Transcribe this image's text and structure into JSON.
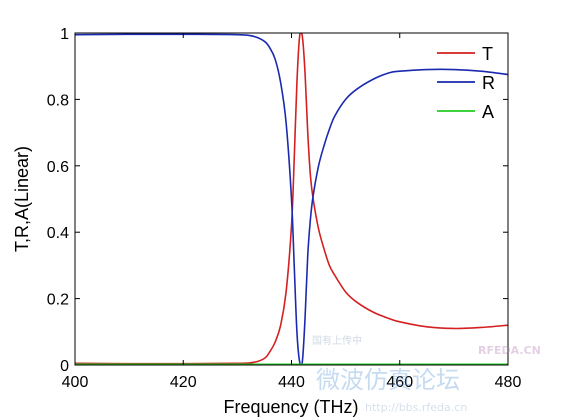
{
  "chart_data": {
    "type": "line",
    "xlabel": "Frequency (THz)",
    "ylabel": "T,R,A(Linear)",
    "xlim": [
      400,
      480
    ],
    "ylim": [
      0,
      1
    ],
    "xticks": [
      400,
      420,
      440,
      460,
      480
    ],
    "yticks": [
      0,
      0.2,
      0.4,
      0.6,
      0.8,
      1
    ],
    "ytick_labels": [
      "0",
      "0.2",
      "0.4",
      "0.6",
      "0.8",
      "1"
    ],
    "grid": false,
    "legend_position": "top-right",
    "series": [
      {
        "name": "T",
        "color": "#d42020",
        "x": [
          400,
          410,
          420,
          430,
          433,
          435,
          436,
          437,
          438,
          439,
          440,
          440.5,
          441,
          441.5,
          442,
          442.5,
          443,
          443.5,
          444,
          445,
          446,
          447,
          448,
          450,
          452,
          455,
          458,
          460,
          465,
          470,
          475,
          480
        ],
        "y": [
          0.005,
          0.004,
          0.004,
          0.005,
          0.008,
          0.02,
          0.04,
          0.07,
          0.12,
          0.22,
          0.42,
          0.62,
          0.85,
          0.99,
          0.99,
          0.88,
          0.7,
          0.57,
          0.5,
          0.41,
          0.35,
          0.3,
          0.27,
          0.22,
          0.19,
          0.16,
          0.14,
          0.13,
          0.115,
          0.11,
          0.113,
          0.12
        ]
      },
      {
        "name": "R",
        "color": "#1a2ab0",
        "x": [
          400,
          410,
          420,
          430,
          433,
          435,
          436,
          437,
          438,
          439,
          440,
          440.5,
          441,
          441.5,
          442,
          442.5,
          443,
          443.5,
          444,
          445,
          446,
          447,
          448,
          450,
          452,
          455,
          458,
          460,
          465,
          470,
          475,
          480
        ],
        "y": [
          0.995,
          0.996,
          0.996,
          0.995,
          0.99,
          0.975,
          0.955,
          0.92,
          0.85,
          0.73,
          0.5,
          0.3,
          0.1,
          0.01,
          0.01,
          0.14,
          0.33,
          0.44,
          0.51,
          0.6,
          0.66,
          0.71,
          0.75,
          0.8,
          0.83,
          0.86,
          0.88,
          0.885,
          0.89,
          0.89,
          0.885,
          0.875
        ]
      },
      {
        "name": "A",
        "color": "#22cc22",
        "x": [
          400,
          420,
          440,
          460,
          480
        ],
        "y": [
          0.002,
          0.002,
          0.002,
          0.002,
          0.002
        ]
      }
    ]
  },
  "watermark": {
    "site_cn": "微波仿真论坛",
    "url": "http://bbs.rfeda.cn",
    "brand": "RFEDA.CN",
    "sub": "国有上传中"
  }
}
